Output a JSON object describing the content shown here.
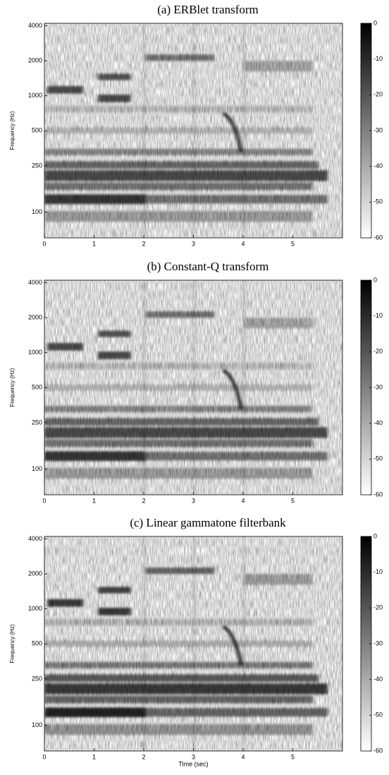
{
  "chart_data": [
    {
      "type": "spectrogram",
      "title": "(a) ERBlet transform",
      "y_label": "Frequency (Hz)",
      "xlim": [
        0,
        6
      ],
      "xticks": [
        0,
        1,
        2,
        3,
        4,
        5
      ],
      "ylim": [
        60,
        4200
      ],
      "yticks": [
        100,
        250,
        500,
        1000,
        2000,
        4000
      ],
      "log_y": true,
      "clim": [
        -60,
        0
      ],
      "cticks": [
        0,
        -10,
        -20,
        -30,
        -40,
        -50,
        -60
      ]
    },
    {
      "type": "spectrogram",
      "title": "(b) Constant-Q transform",
      "y_label": "Frequency (Hz)",
      "xlim": [
        0,
        6
      ],
      "xticks": [
        0,
        1,
        2,
        3,
        4,
        5
      ],
      "ylim": [
        60,
        4200
      ],
      "yticks": [
        100,
        250,
        500,
        1000,
        2000,
        4000
      ],
      "log_y": true,
      "clim": [
        -60,
        0
      ],
      "cticks": [
        0,
        -10,
        -20,
        -30,
        -40,
        -50,
        -60
      ]
    },
    {
      "type": "spectrogram",
      "title": "(c) Linear gammatone filterbank",
      "y_label": "Frequency (Hz)",
      "x_label": "Time (sec)",
      "xlim": [
        0,
        6
      ],
      "xticks": [
        0,
        1,
        2,
        3,
        4,
        5
      ],
      "ylim": [
        60,
        4200
      ],
      "yticks": [
        100,
        250,
        500,
        1000,
        2000,
        4000
      ],
      "log_y": true,
      "clim": [
        -60,
        0
      ],
      "cticks": [
        0,
        -10,
        -20,
        -30,
        -40,
        -50,
        -60
      ]
    }
  ]
}
